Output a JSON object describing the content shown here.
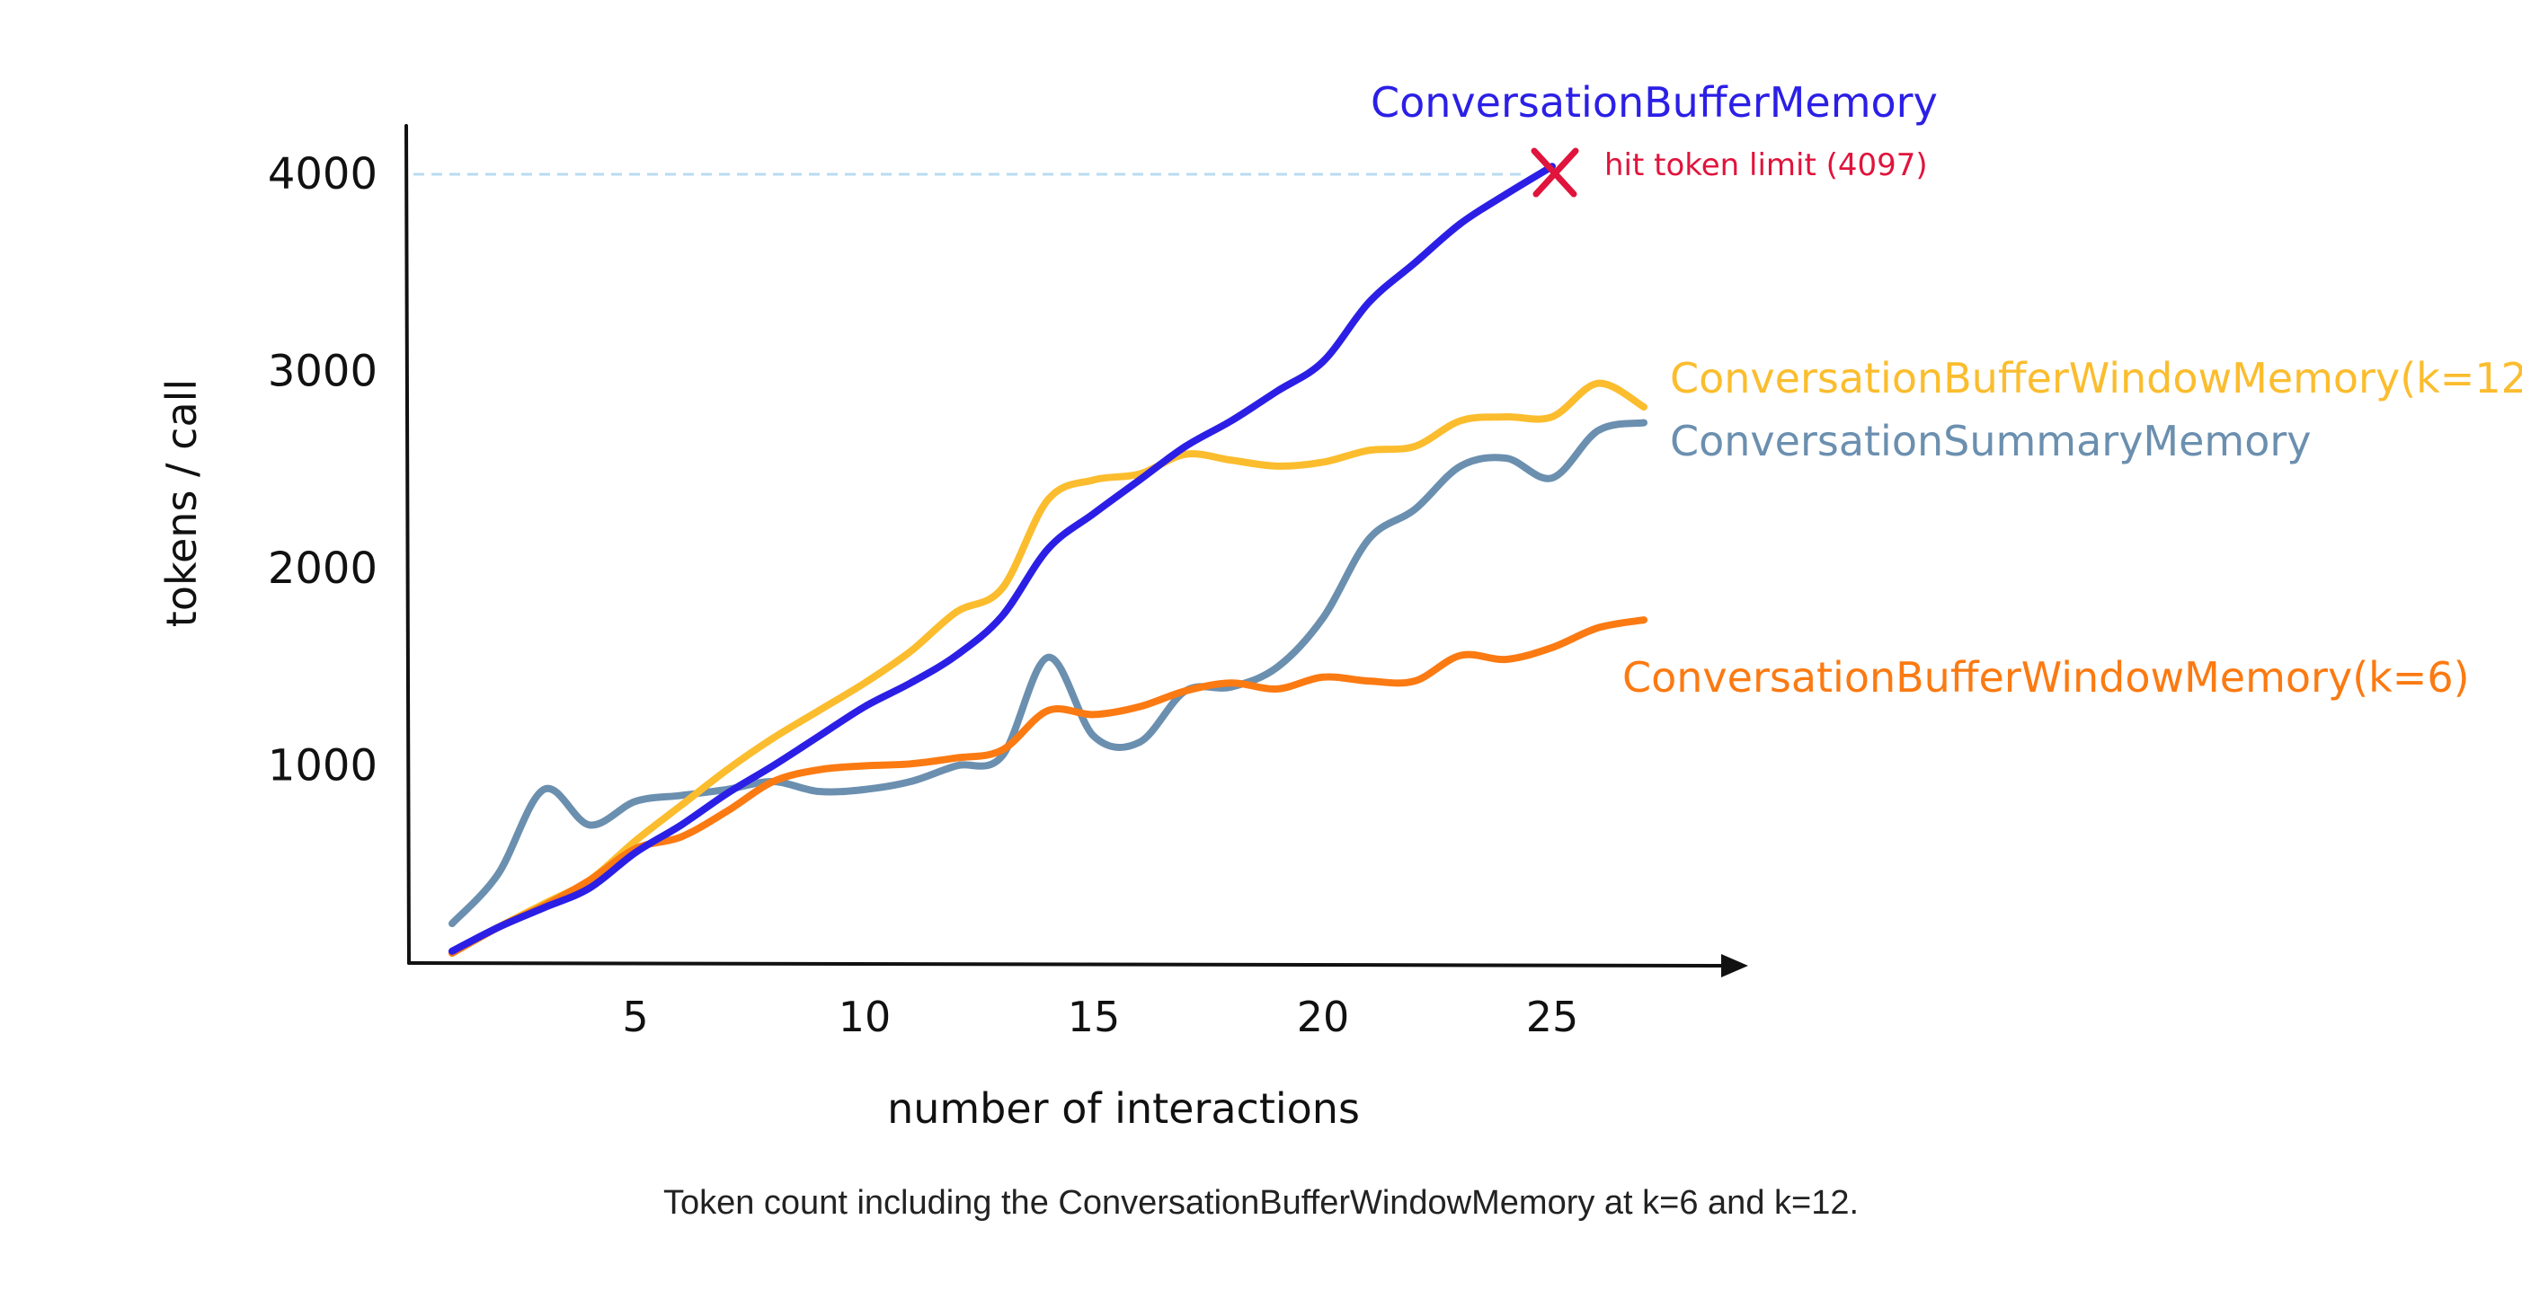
{
  "chart_data": {
    "type": "line",
    "title": "",
    "xlabel": "number of interactions",
    "ylabel": "tokens / call",
    "x_ticks": [
      5,
      10,
      15,
      20,
      25
    ],
    "y_ticks": [
      1000,
      2000,
      3000,
      4000
    ],
    "xlim": [
      0,
      29
    ],
    "ylim": [
      0,
      4200
    ],
    "grid": false,
    "legend": "inline labels at line ends",
    "series": [
      {
        "name": "ConversationBufferMemory",
        "color": "#2b1fe6",
        "x": [
          1,
          2,
          3,
          4,
          5,
          6,
          7,
          8,
          9,
          10,
          11,
          12,
          13,
          14,
          15,
          16,
          17,
          18,
          19,
          20,
          21,
          22,
          23,
          24,
          25
        ],
        "y": [
          60,
          180,
          280,
          380,
          560,
          700,
          860,
          1000,
          1150,
          1300,
          1420,
          1560,
          1760,
          2100,
          2280,
          2450,
          2620,
          2750,
          2900,
          3050,
          3350,
          3550,
          3750,
          3900,
          4040
        ]
      },
      {
        "name": "ConversationBufferWindowMemory(k=12)",
        "color": "#fbbd2e",
        "x": [
          1,
          2,
          3,
          4,
          5,
          6,
          7,
          8,
          9,
          10,
          11,
          12,
          13,
          14,
          15,
          16,
          17,
          18,
          19,
          20,
          21,
          22,
          23,
          24,
          25,
          26,
          27
        ],
        "y": [
          50,
          180,
          300,
          420,
          620,
          800,
          980,
          1140,
          1280,
          1420,
          1580,
          1780,
          1900,
          2350,
          2450,
          2480,
          2580,
          2550,
          2520,
          2540,
          2600,
          2620,
          2750,
          2770,
          2770,
          2940,
          2820
        ]
      },
      {
        "name": "ConversationSummaryMemory",
        "color": "#6b8faf",
        "x": [
          1,
          2,
          3,
          4,
          5,
          6,
          7,
          8,
          9,
          10,
          11,
          12,
          13,
          14,
          15,
          16,
          17,
          18,
          19,
          20,
          21,
          22,
          23,
          24,
          25,
          26,
          27
        ],
        "y": [
          200,
          450,
          880,
          700,
          820,
          850,
          880,
          920,
          870,
          880,
          920,
          1000,
          1050,
          1550,
          1150,
          1120,
          1380,
          1400,
          1500,
          1750,
          2150,
          2300,
          2520,
          2560,
          2460,
          2700,
          2740
        ]
      },
      {
        "name": "ConversationBufferWindowMemory(k=6)",
        "color": "#fb7a12",
        "x": [
          1,
          2,
          3,
          4,
          5,
          6,
          7,
          8,
          9,
          10,
          11,
          12,
          13,
          14,
          15,
          16,
          17,
          18,
          19,
          20,
          21,
          22,
          23,
          24,
          25,
          26,
          27
        ],
        "y": [
          50,
          180,
          290,
          420,
          580,
          640,
          770,
          920,
          980,
          1000,
          1010,
          1040,
          1080,
          1280,
          1260,
          1300,
          1380,
          1420,
          1390,
          1450,
          1430,
          1430,
          1560,
          1540,
          1600,
          1700,
          1740
        ]
      }
    ],
    "annotations": [
      {
        "text": "hit token limit (4097)",
        "x": 25,
        "y": 4097,
        "color": "#e0143c",
        "marker": "cross"
      }
    ],
    "limit_line": {
      "y": 4000,
      "color": "#b9dcf0",
      "style": "dashed"
    }
  },
  "caption": "Token count including the ConversationBufferWindowMemory at k=6 and k=12."
}
